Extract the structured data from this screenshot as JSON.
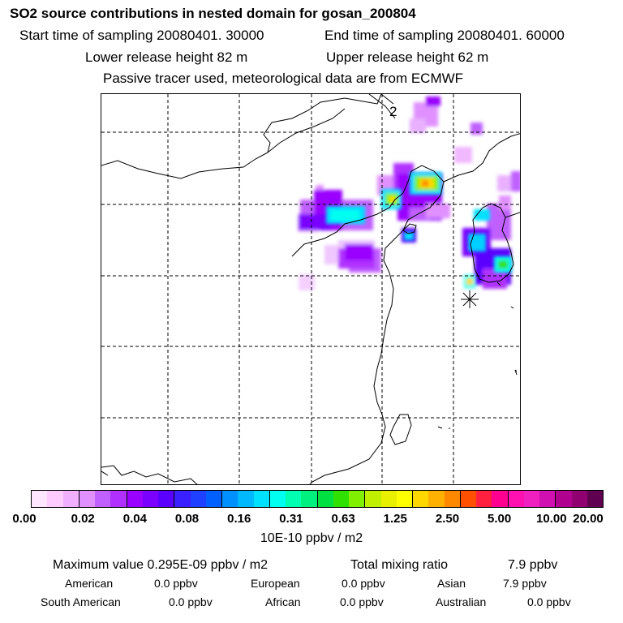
{
  "title": "SO2 source contributions in nested domain for gosan_200804",
  "header": {
    "start_label": "Start time of sampling 20080401. 30000",
    "end_label": "End time of sampling 20080401. 60000",
    "lower_release": "Lower release height   82 m",
    "upper_release": "Upper release height   62 m",
    "tracer_note": "Passive tracer used, meteorological data are from ECMWF"
  },
  "map": {
    "panel_label": "2"
  },
  "colorbar": {
    "colors": [
      "#ffe6ff",
      "#ffccff",
      "#f0b0ff",
      "#e090ff",
      "#c060ff",
      "#b030ff",
      "#9a00ff",
      "#7a00ff",
      "#5a00ff",
      "#3a20ff",
      "#2040ff",
      "#0060ff",
      "#0090ff",
      "#00b8ff",
      "#00e0ff",
      "#00fff0",
      "#00ffb0",
      "#00f080",
      "#00e040",
      "#30e000",
      "#80f000",
      "#c0f000",
      "#e8f000",
      "#ffff00",
      "#ffd800",
      "#ffb000",
      "#ff8800",
      "#ff5000",
      "#ff2040",
      "#ff0090",
      "#ff10b0",
      "#f020c0",
      "#d010b0",
      "#b00090",
      "#900070",
      "#600050"
    ],
    "ticks": [
      "0.00",
      "0.02",
      "0.04",
      "0.08",
      "0.16",
      "0.31",
      "0.63",
      "1.25",
      "2.50",
      "5.00",
      "10.00",
      "20.00"
    ],
    "units": "10E-10 ppbv / m2"
  },
  "stats": {
    "max_value": "Maximum value  0.295E-09 ppbv / m2",
    "total_label": "Total mixing ratio",
    "total_value": "7.9 ppbv",
    "american_label": "American",
    "american_value": "0.0 ppbv",
    "european_label": "European",
    "european_value": "0.0 ppbv",
    "asian_label": "Asian",
    "asian_value": "7.9 ppbv",
    "south_american_label": "South American",
    "south_american_value": "0.0 ppbv",
    "african_label": "African",
    "african_value": "0.0 ppbv",
    "australian_label": "Australian",
    "australian_value": "0.0 ppbv"
  }
}
